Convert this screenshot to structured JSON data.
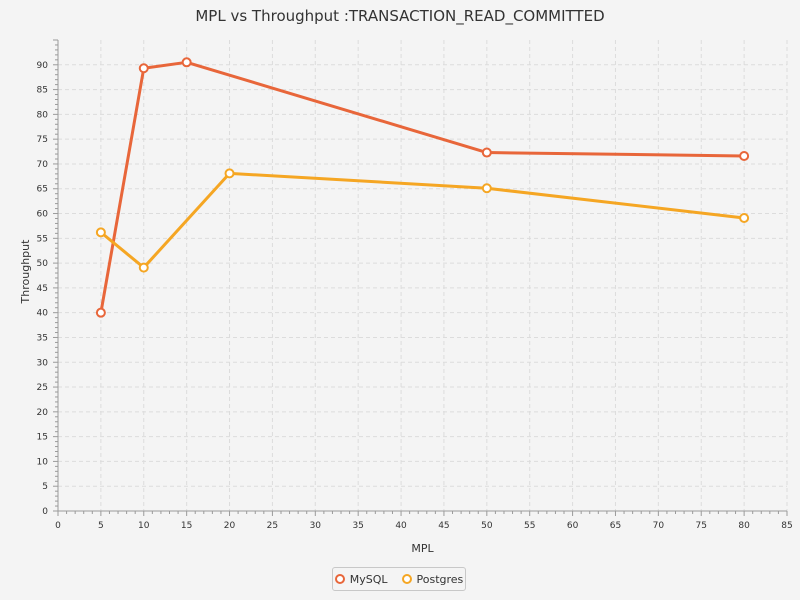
{
  "chart_data": {
    "type": "line",
    "title": "MPL vs Throughput :TRANSACTION_READ_COMMITTED",
    "xlabel": "MPL",
    "ylabel": "Throughput",
    "xlim": [
      0,
      85
    ],
    "ylim": [
      0,
      95
    ],
    "xticks": [
      0,
      5,
      10,
      15,
      20,
      25,
      30,
      35,
      40,
      45,
      50,
      55,
      60,
      65,
      70,
      75,
      80,
      85
    ],
    "yticks": [
      0,
      5,
      10,
      15,
      20,
      25,
      30,
      35,
      40,
      45,
      50,
      55,
      60,
      65,
      70,
      75,
      80,
      85,
      90
    ],
    "grid": true,
    "legend_position": "bottom-center",
    "series": [
      {
        "name": "MySQL",
        "color": "#e8663a",
        "x": [
          5,
          10,
          15,
          50,
          80
        ],
        "y": [
          40,
          89.3,
          90.5,
          72.3,
          71.6
        ]
      },
      {
        "name": "Postgres",
        "color": "#f5a623",
        "x": [
          5,
          10,
          20,
          50,
          80
        ],
        "y": [
          56.2,
          49.1,
          68.1,
          65.1,
          59.1
        ]
      }
    ]
  }
}
